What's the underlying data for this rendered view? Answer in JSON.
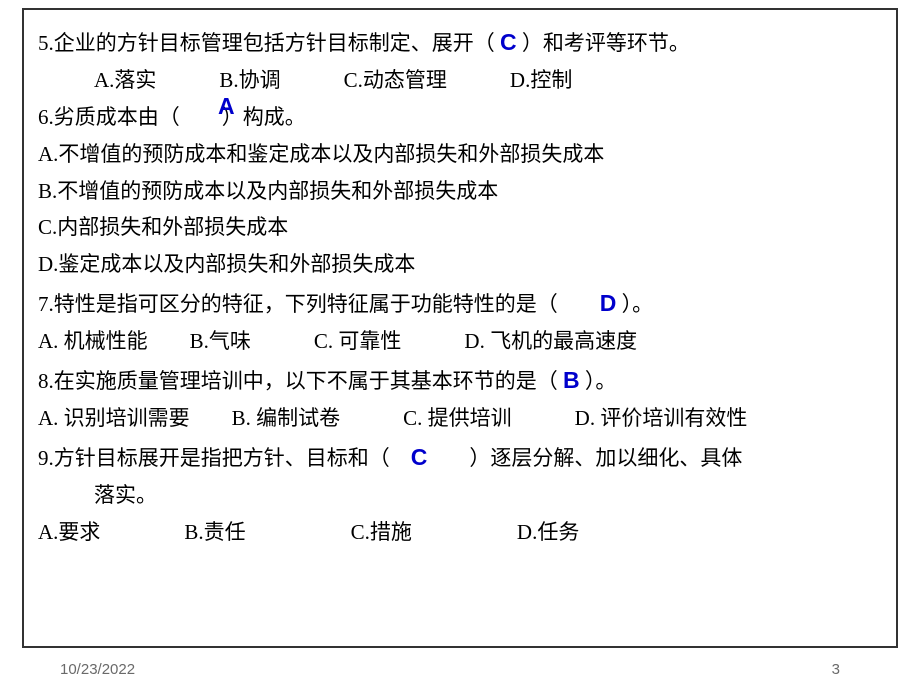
{
  "questions": {
    "q5": {
      "prefix": "5.企业的方针目标管理包括方针目标制定、展开（ ",
      "answer": "C",
      "suffix": " ）和考评等环节。",
      "opts": "A.落实　　　B.协调　　　C.动态管理　　　D.控制"
    },
    "q6": {
      "line1": "6.劣质成本由（　　）构成。",
      "answer": "A",
      "optA": "A.不增值的预防成本和鉴定成本以及内部损失和外部损失成本",
      "optB": "B.不增值的预防成本以及内部损失和外部损失成本",
      "optC": "C.内部损失和外部损失成本",
      "optD": "D.鉴定成本以及内部损失和外部损失成本"
    },
    "q7": {
      "prefix": "7.特性是指可区分的特征，下列特征属于功能特性的是（　　",
      "answer": "D",
      "suffix": "  ）。",
      "opts": "A. 机械性能　　B.气味　　　C. 可靠性　　　D. 飞机的最高速度"
    },
    "q8": {
      "prefix": "8.在实施质量管理培训中，以下不属于其基本环节的是（ ",
      "answer": "B",
      "suffix": " ）。",
      "opts": "A. 识别培训需要　　B. 编制试卷　　　C. 提供培训　　　D. 评价培训有效性"
    },
    "q9": {
      "prefix": "9.方针目标展开是指把方针、目标和（　",
      "answer": "C",
      "suffix": "　　）逐层分解、加以细化、具体",
      "line2": "落实。",
      "opts": "A.要求　　　　B.责任　　　　　C.措施　　　　　D.任务"
    }
  },
  "footer": {
    "date": "10/23/2022",
    "page": "3"
  }
}
